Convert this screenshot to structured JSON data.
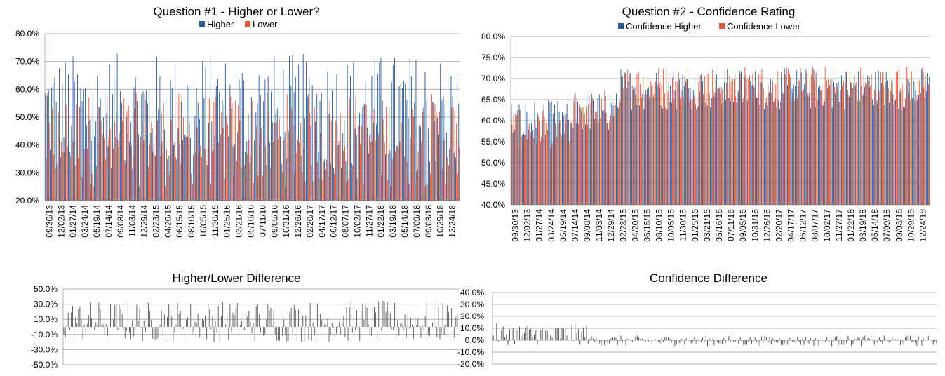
{
  "chart_data": [
    {
      "id": "q1",
      "type": "bar",
      "title": "Question #1 - Higher or Lower?",
      "series": [
        {
          "name": "Higher",
          "color": "#2a5c96"
        },
        {
          "name": "Lower",
          "color": "#e8593a"
        }
      ],
      "ylim": [
        0.2,
        0.8
      ],
      "yticks": [
        "80.0%",
        "70.0%",
        "60.0%",
        "50.0%",
        "40.0%",
        "30.0%",
        "20.0%"
      ],
      "xticks": [
        "09/30/13",
        "12/02/13",
        "01/27/14",
        "03/24/14",
        "05/19/14",
        "07/14/14",
        "09/08/14",
        "11/03/14",
        "12/29/14",
        "02/23/15",
        "04/20/15",
        "06/15/15",
        "08/10/15",
        "10/05/15",
        "11/30/15",
        "01/25/16",
        "03/21/16",
        "05/16/16",
        "07/11/16",
        "09/05/16",
        "10/31/16",
        "12/26/16",
        "02/20/17",
        "04/17/17",
        "06/12/17",
        "08/07/17",
        "10/02/17",
        "11/27/17",
        "01/22/18",
        "03/19/18",
        "05/14/18",
        "07/09/18",
        "09/03/18",
        "10/29/18",
        "12/24/18"
      ],
      "n_points": 272,
      "higher_avg": 0.52,
      "grid": true,
      "legend": "top"
    },
    {
      "id": "q2",
      "type": "bar",
      "title": "Question #2 - Confidence Rating",
      "series": [
        {
          "name": "Confidence Higher",
          "color": "#2a5c96"
        },
        {
          "name": "Confidence Lower",
          "color": "#e8593a"
        }
      ],
      "ylim": [
        0.4,
        0.8
      ],
      "yticks": [
        "80.0%",
        "75.0%",
        "70.0%",
        "65.0%",
        "60.0%",
        "55.0%",
        "50.0%",
        "45.0%",
        "40.0%"
      ],
      "xticks": [
        "09/30/13",
        "12/02/13",
        "01/27/14",
        "03/24/14",
        "05/19/14",
        "07/14/14",
        "09/08/14",
        "11/03/14",
        "12/29/14",
        "02/23/15",
        "04/20/15",
        "06/15/15",
        "08/10/15",
        "10/05/15",
        "11/30/15",
        "01/25/16",
        "03/21/16",
        "05/16/16",
        "07/11/16",
        "09/05/16",
        "10/31/16",
        "12/26/16",
        "02/20/17",
        "04/17/17",
        "06/12/17",
        "08/07/17",
        "10/02/17",
        "11/27/17",
        "01/22/18",
        "03/19/18",
        "05/14/18",
        "07/09/18",
        "09/03/18",
        "10/29/18",
        "12/24/18"
      ],
      "n_points": 272,
      "grid": true,
      "legend": "top"
    },
    {
      "id": "d1",
      "type": "bar",
      "title": "Higher/Lower Difference",
      "series": [
        {
          "name": "",
          "color": "#666666"
        }
      ],
      "ylim": [
        -0.5,
        0.5
      ],
      "yticks": [
        "50.0%",
        "30.0%",
        "10.0%",
        "-10.0%",
        "-30.0%",
        "-50.0%"
      ],
      "n_points": 272,
      "grid": true
    },
    {
      "id": "d2",
      "type": "bar",
      "title": "Confidence Difference",
      "series": [
        {
          "name": "",
          "color": "#555555"
        }
      ],
      "ylim": [
        -0.2,
        0.4
      ],
      "yticks": [
        "40.0%",
        "30.0%",
        "20.0%",
        "10.0%",
        "0.0%",
        "-10.0%",
        "-20.0%"
      ],
      "n_points": 272,
      "grid": true
    }
  ]
}
